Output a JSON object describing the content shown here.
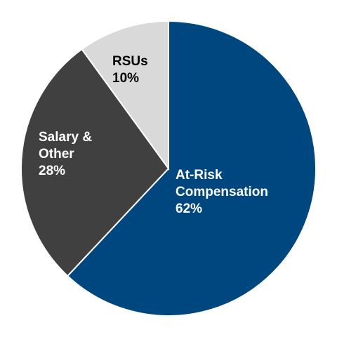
{
  "chart_data": {
    "type": "pie",
    "categories": [
      "At-Risk Compensation",
      "Salary & Other",
      "RSUs"
    ],
    "values": [
      62,
      28,
      10
    ],
    "value_labels": [
      "62%",
      "28%",
      "10%"
    ],
    "colors": [
      "#00467f",
      "#404040",
      "#d9d9d9"
    ]
  }
}
